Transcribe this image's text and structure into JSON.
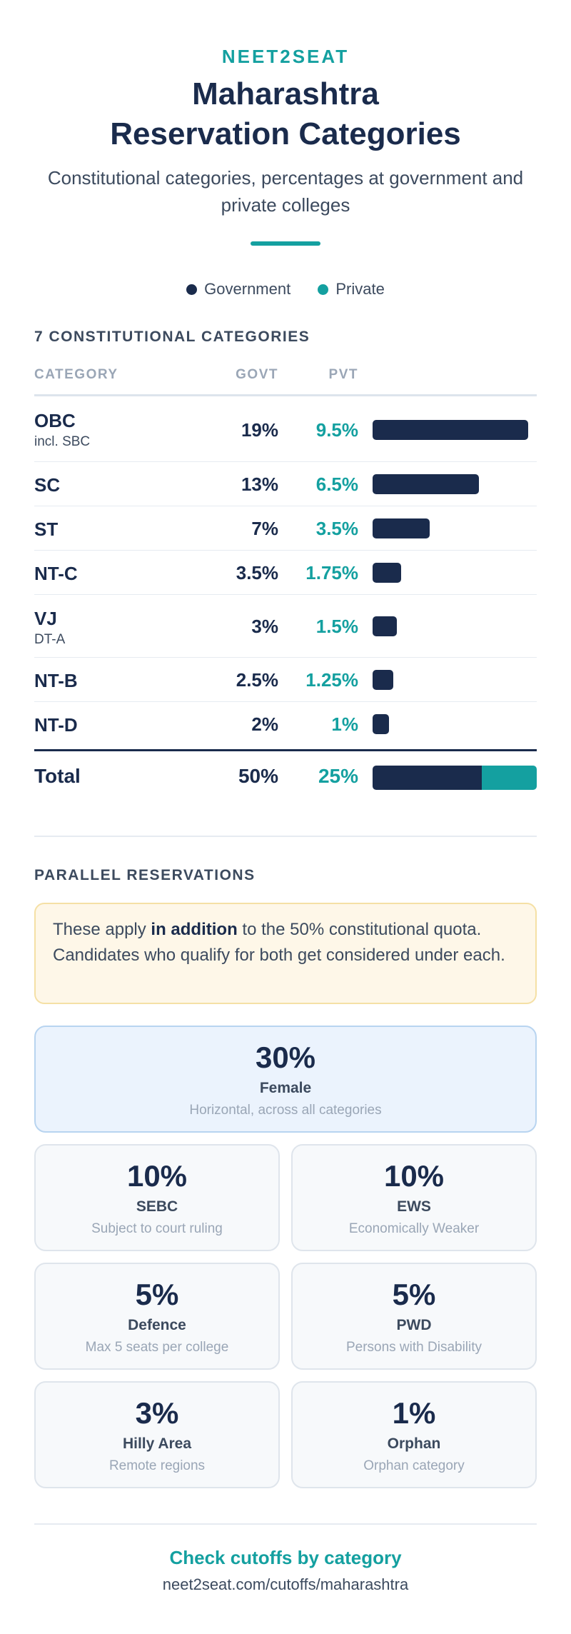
{
  "header": {
    "brand": "NEET2SEAT",
    "title_line1": "Maharashtra",
    "title_line2": "Reservation Categories",
    "subtitle": "Constitutional categories, percentages at government and private colleges"
  },
  "legend": {
    "government": "Government",
    "private": "Private"
  },
  "colors": {
    "government": "#1a2b4c",
    "private": "#14a0a0",
    "accent": "#14a0a0"
  },
  "constitutional": {
    "section_title": "7 CONSTITUTIONAL CATEGORIES",
    "headers": {
      "category": "CATEGORY",
      "govt": "GOVT",
      "pvt": "PVT"
    },
    "rows": [
      {
        "name": "OBC",
        "sub": "incl. SBC",
        "govt": "19%",
        "pvt": "9.5%"
      },
      {
        "name": "SC",
        "sub": "",
        "govt": "13%",
        "pvt": "6.5%"
      },
      {
        "name": "ST",
        "sub": "",
        "govt": "7%",
        "pvt": "3.5%"
      },
      {
        "name": "NT-C",
        "sub": "",
        "govt": "3.5%",
        "pvt": "1.75%"
      },
      {
        "name": "VJ",
        "sub": "DT-A",
        "govt": "3%",
        "pvt": "1.5%"
      },
      {
        "name": "NT-B",
        "sub": "",
        "govt": "2.5%",
        "pvt": "1.25%"
      },
      {
        "name": "NT-D",
        "sub": "",
        "govt": "2%",
        "pvt": "1%"
      }
    ],
    "total": {
      "label": "Total",
      "govt": "50%",
      "pvt": "25%"
    }
  },
  "chart_data": {
    "type": "bar",
    "orientation": "horizontal",
    "categories": [
      "OBC",
      "SC",
      "ST",
      "NT-C",
      "VJ",
      "NT-B",
      "NT-D"
    ],
    "series": [
      {
        "name": "Government",
        "values": [
          19,
          13,
          7,
          3.5,
          3,
          2.5,
          2
        ]
      },
      {
        "name": "Private",
        "values": [
          9.5,
          6.5,
          3.5,
          1.75,
          1.5,
          1.25,
          1
        ]
      }
    ],
    "total": {
      "government": 50,
      "private": 25
    },
    "xlim": [
      0,
      19
    ],
    "grid": false,
    "legend_position": "top"
  },
  "parallel": {
    "section_title": "PARALLEL RESERVATIONS",
    "note_before": "These apply ",
    "note_bold": "in addition",
    "note_after": " to the 50% constitutional quota. Candidates who qualify for both get considered under each.",
    "featured": {
      "pct": "30%",
      "name": "Female",
      "desc": "Horizontal, across all categories"
    },
    "cards": [
      {
        "pct": "10%",
        "name": "SEBC",
        "desc": "Subject to court ruling"
      },
      {
        "pct": "10%",
        "name": "EWS",
        "desc": "Economically Weaker"
      },
      {
        "pct": "5%",
        "name": "Defence",
        "desc": "Max 5 seats per college"
      },
      {
        "pct": "5%",
        "name": "PWD",
        "desc": "Persons with Disability"
      },
      {
        "pct": "3%",
        "name": "Hilly Area",
        "desc": "Remote regions"
      },
      {
        "pct": "1%",
        "name": "Orphan",
        "desc": "Orphan category"
      }
    ]
  },
  "footer": {
    "link": "Check cutoffs by category",
    "url": "neet2seat.com/cutoffs/maharashtra"
  }
}
